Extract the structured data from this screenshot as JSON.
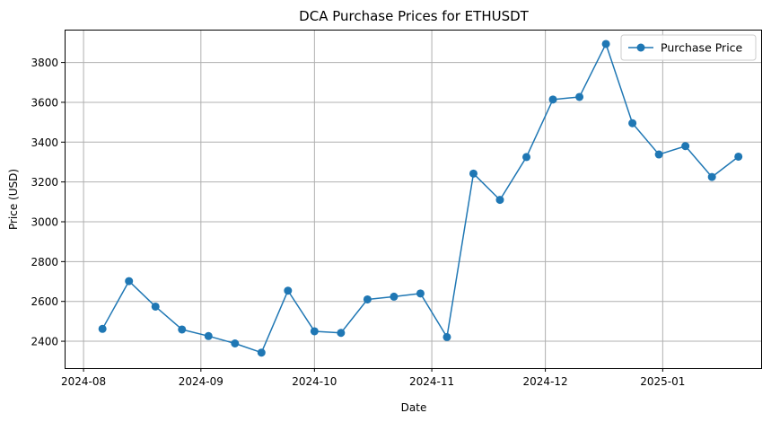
{
  "chart_data": {
    "type": "line",
    "title": "DCA Purchase Prices for ETHUSDT",
    "xlabel": "Date",
    "ylabel": "Price (USD)",
    "grid": true,
    "legend_position": "top-right",
    "x_ticks": [
      "2024-08",
      "2024-09",
      "2024-10",
      "2024-11",
      "2024-12",
      "2025-01"
    ],
    "y_ticks": [
      2400,
      2600,
      2800,
      3000,
      3200,
      3400,
      3600,
      3800
    ],
    "xlim": [
      "2024-07-27",
      "2025-01-27"
    ],
    "ylim": [
      2265,
      3965
    ],
    "series": [
      {
        "name": "Purchase Price",
        "color": "#1f77b4",
        "marker": "circle",
        "x": [
          "2024-08-06",
          "2024-08-13",
          "2024-08-20",
          "2024-08-27",
          "2024-09-03",
          "2024-09-10",
          "2024-09-17",
          "2024-09-24",
          "2024-10-01",
          "2024-10-08",
          "2024-10-15",
          "2024-10-22",
          "2024-10-29",
          "2024-11-05",
          "2024-11-12",
          "2024-11-19",
          "2024-11-26",
          "2024-12-03",
          "2024-12-10",
          "2024-12-17",
          "2024-12-24",
          "2024-12-31",
          "2025-01-07",
          "2025-01-14",
          "2025-01-21"
        ],
        "values": [
          2462,
          2702,
          2574,
          2459,
          2426,
          2389,
          2343,
          2654,
          2450,
          2442,
          2610,
          2624,
          2640,
          2421,
          3242,
          3110,
          3325,
          3614,
          3627,
          3893,
          3495,
          3338,
          3380,
          3225,
          3327
        ]
      }
    ]
  }
}
